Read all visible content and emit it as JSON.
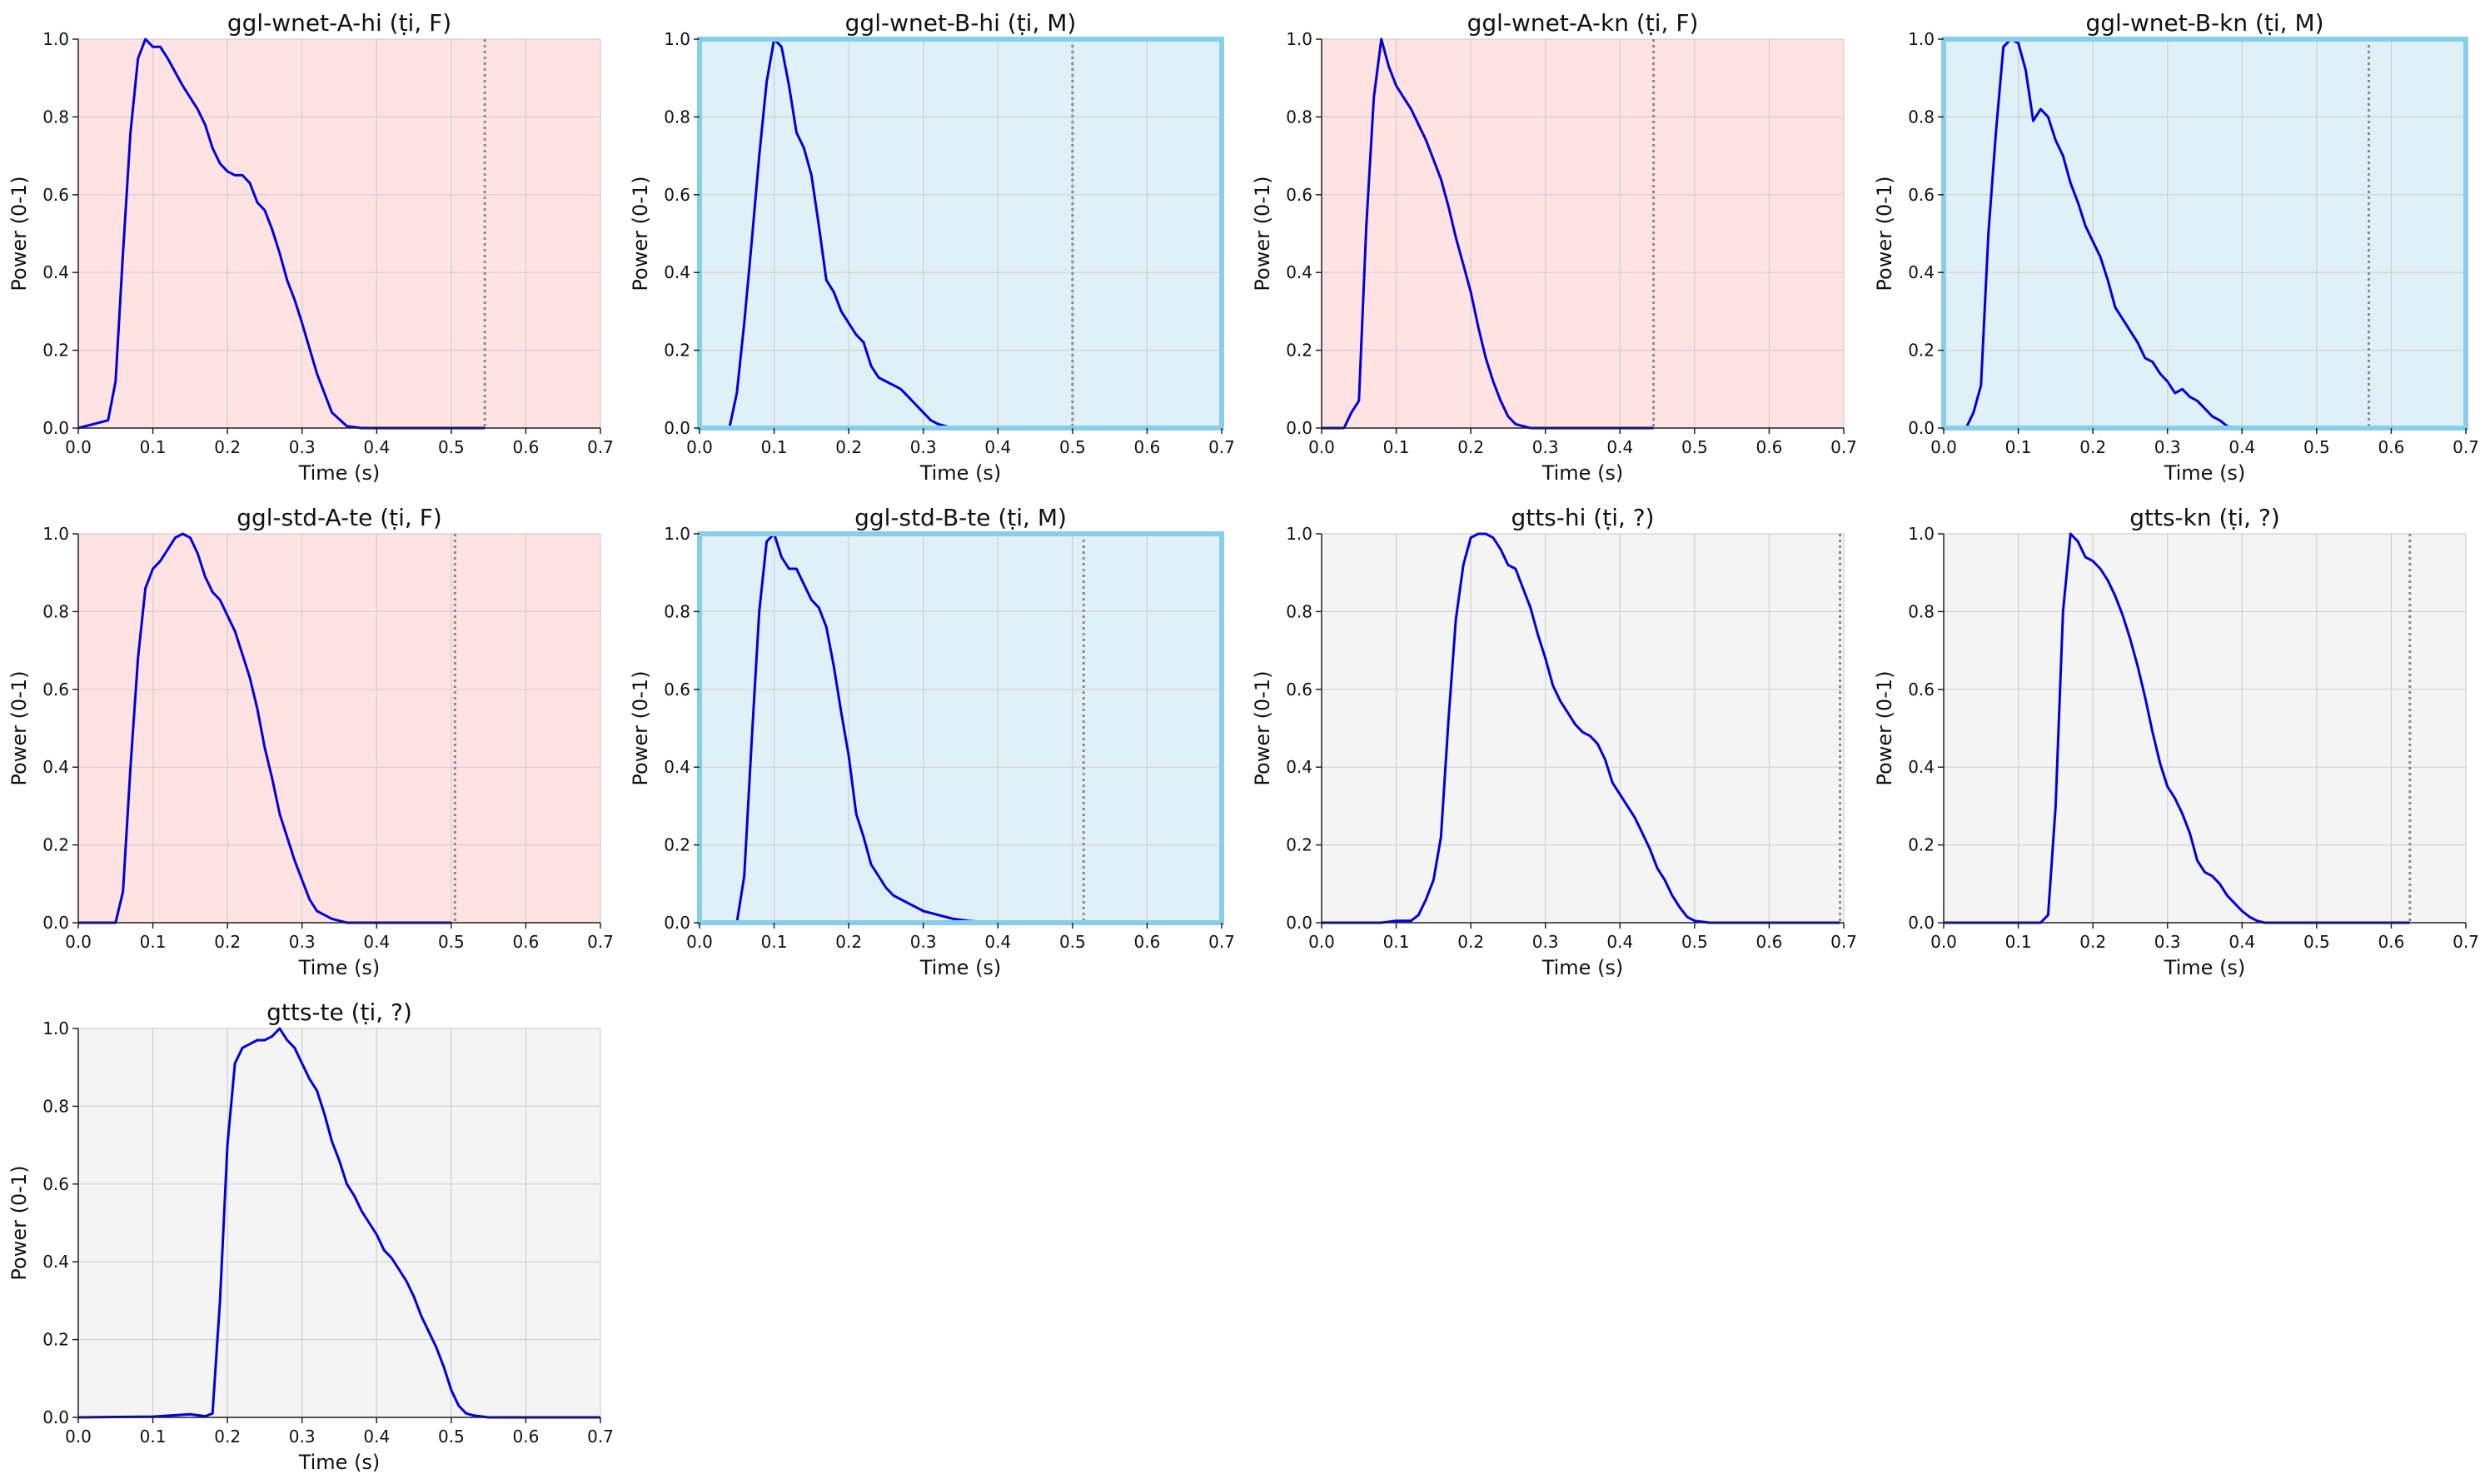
{
  "figure": {
    "background_colors": {
      "F": "#ffe2e2",
      "M": "#dff0f7",
      "?": "#f4f4f4"
    },
    "highlight_frame_color": "#87ceeb",
    "line_color": "#0000dd",
    "marker_color": "#888888"
  },
  "chart_data": [
    {
      "type": "line",
      "title": "ggl-wnet-A-hi (ṭi, F)",
      "gender": "F",
      "xlabel": "Time (s)",
      "ylabel": "Power (0-1)",
      "xlim": [
        0,
        0.7
      ],
      "ylim": [
        0,
        1
      ],
      "xticks": [
        "0.0",
        "0.1",
        "0.2",
        "0.3",
        "0.4",
        "0.5",
        "0.6",
        "0.7"
      ],
      "yticks": [
        "0.0",
        "0.2",
        "0.4",
        "0.6",
        "0.8",
        "1.0"
      ],
      "grid": true,
      "end_marker": 0.545,
      "x": [
        0,
        0.04,
        0.05,
        0.06,
        0.07,
        0.08,
        0.09,
        0.1,
        0.11,
        0.12,
        0.14,
        0.16,
        0.17,
        0.18,
        0.19,
        0.2,
        0.21,
        0.22,
        0.23,
        0.24,
        0.25,
        0.26,
        0.27,
        0.28,
        0.29,
        0.3,
        0.32,
        0.34,
        0.36,
        0.38,
        0.4,
        0.5,
        0.545
      ],
      "y": [
        0,
        0.02,
        0.12,
        0.45,
        0.76,
        0.95,
        1.0,
        0.98,
        0.98,
        0.95,
        0.88,
        0.82,
        0.78,
        0.72,
        0.68,
        0.66,
        0.65,
        0.65,
        0.63,
        0.58,
        0.56,
        0.51,
        0.45,
        0.38,
        0.33,
        0.27,
        0.14,
        0.04,
        0.005,
        0,
        0,
        0,
        0
      ]
    },
    {
      "type": "line",
      "title": "ggl-wnet-B-hi (ṭi, M)",
      "gender": "M",
      "highlight": true,
      "xlabel": "Time (s)",
      "ylabel": "Power (0-1)",
      "xlim": [
        0,
        0.7
      ],
      "ylim": [
        0,
        1
      ],
      "xticks": [
        "0.0",
        "0.1",
        "0.2",
        "0.3",
        "0.4",
        "0.5",
        "0.6",
        "0.7"
      ],
      "yticks": [
        "0.0",
        "0.2",
        "0.4",
        "0.6",
        "0.8",
        "1.0"
      ],
      "grid": true,
      "end_marker": 0.5,
      "x": [
        0.04,
        0.05,
        0.06,
        0.07,
        0.08,
        0.09,
        0.1,
        0.11,
        0.12,
        0.13,
        0.14,
        0.15,
        0.16,
        0.17,
        0.18,
        0.19,
        0.2,
        0.21,
        0.22,
        0.23,
        0.24,
        0.25,
        0.26,
        0.27,
        0.28,
        0.29,
        0.3,
        0.31,
        0.32,
        0.33,
        0.34
      ],
      "y": [
        0,
        0.09,
        0.27,
        0.48,
        0.7,
        0.89,
        1.0,
        0.98,
        0.88,
        0.76,
        0.72,
        0.65,
        0.52,
        0.38,
        0.35,
        0.3,
        0.27,
        0.24,
        0.22,
        0.16,
        0.13,
        0.12,
        0.11,
        0.1,
        0.08,
        0.06,
        0.04,
        0.02,
        0.01,
        0.005,
        0
      ]
    },
    {
      "type": "line",
      "title": "ggl-wnet-A-kn (ṭi, F)",
      "gender": "F",
      "xlabel": "Time (s)",
      "ylabel": "Power (0-1)",
      "xlim": [
        0,
        0.7
      ],
      "ylim": [
        0,
        1
      ],
      "xticks": [
        "0.0",
        "0.1",
        "0.2",
        "0.3",
        "0.4",
        "0.5",
        "0.6",
        "0.7"
      ],
      "yticks": [
        "0.0",
        "0.2",
        "0.4",
        "0.6",
        "0.8",
        "1.0"
      ],
      "grid": true,
      "end_marker": 0.445,
      "x": [
        0,
        0.03,
        0.04,
        0.05,
        0.06,
        0.07,
        0.08,
        0.09,
        0.1,
        0.11,
        0.12,
        0.13,
        0.14,
        0.15,
        0.16,
        0.17,
        0.18,
        0.19,
        0.2,
        0.21,
        0.22,
        0.23,
        0.24,
        0.25,
        0.26,
        0.27,
        0.28,
        0.3,
        0.35,
        0.445
      ],
      "y": [
        0,
        0,
        0.04,
        0.07,
        0.52,
        0.85,
        1.0,
        0.93,
        0.88,
        0.85,
        0.82,
        0.78,
        0.74,
        0.69,
        0.64,
        0.57,
        0.49,
        0.42,
        0.35,
        0.26,
        0.18,
        0.12,
        0.07,
        0.03,
        0.01,
        0.005,
        0,
        0,
        0,
        0
      ]
    },
    {
      "type": "line",
      "title": "ggl-wnet-B-kn (ṭi, M)",
      "gender": "M",
      "highlight": true,
      "xlabel": "Time (s)",
      "ylabel": "Power (0-1)",
      "xlim": [
        0,
        0.7
      ],
      "ylim": [
        0,
        1
      ],
      "xticks": [
        "0.0",
        "0.1",
        "0.2",
        "0.3",
        "0.4",
        "0.5",
        "0.6",
        "0.7"
      ],
      "yticks": [
        "0.0",
        "0.2",
        "0.4",
        "0.6",
        "0.8",
        "1.0"
      ],
      "grid": true,
      "end_marker": 0.57,
      "x": [
        0.03,
        0.04,
        0.05,
        0.06,
        0.07,
        0.08,
        0.09,
        0.1,
        0.11,
        0.12,
        0.13,
        0.14,
        0.15,
        0.16,
        0.17,
        0.18,
        0.19,
        0.2,
        0.21,
        0.22,
        0.23,
        0.24,
        0.25,
        0.26,
        0.27,
        0.28,
        0.29,
        0.3,
        0.31,
        0.32,
        0.33,
        0.34,
        0.35,
        0.36,
        0.37,
        0.38,
        0.39
      ],
      "y": [
        0,
        0.04,
        0.11,
        0.5,
        0.76,
        0.98,
        1.0,
        0.99,
        0.92,
        0.79,
        0.82,
        0.8,
        0.74,
        0.7,
        0.63,
        0.58,
        0.52,
        0.48,
        0.44,
        0.38,
        0.31,
        0.28,
        0.25,
        0.22,
        0.18,
        0.17,
        0.14,
        0.12,
        0.09,
        0.1,
        0.08,
        0.07,
        0.05,
        0.03,
        0.02,
        0.005,
        0
      ]
    },
    {
      "type": "line",
      "title": "ggl-std-A-te (ṭi, F)",
      "gender": "F",
      "xlabel": "Time (s)",
      "ylabel": "Power (0-1)",
      "xlim": [
        0,
        0.7
      ],
      "ylim": [
        0,
        1
      ],
      "xticks": [
        "0.0",
        "0.1",
        "0.2",
        "0.3",
        "0.4",
        "0.5",
        "0.6",
        "0.7"
      ],
      "yticks": [
        "0.0",
        "0.2",
        "0.4",
        "0.6",
        "0.8",
        "1.0"
      ],
      "grid": true,
      "end_marker": 0.505,
      "x": [
        0,
        0.05,
        0.06,
        0.07,
        0.08,
        0.09,
        0.1,
        0.11,
        0.12,
        0.13,
        0.14,
        0.15,
        0.16,
        0.17,
        0.18,
        0.19,
        0.2,
        0.21,
        0.22,
        0.23,
        0.24,
        0.25,
        0.26,
        0.27,
        0.28,
        0.29,
        0.3,
        0.31,
        0.32,
        0.33,
        0.34,
        0.35,
        0.36,
        0.4,
        0.5
      ],
      "y": [
        0,
        0,
        0.08,
        0.4,
        0.68,
        0.86,
        0.91,
        0.93,
        0.96,
        0.99,
        1.0,
        0.99,
        0.95,
        0.89,
        0.85,
        0.83,
        0.79,
        0.75,
        0.69,
        0.63,
        0.55,
        0.45,
        0.37,
        0.28,
        0.22,
        0.16,
        0.11,
        0.06,
        0.03,
        0.02,
        0.01,
        0.005,
        0,
        0,
        0
      ]
    },
    {
      "type": "line",
      "title": "ggl-std-B-te (ṭi, M)",
      "gender": "M",
      "highlight": true,
      "xlabel": "Time (s)",
      "ylabel": "Power (0-1)",
      "xlim": [
        0,
        0.7
      ],
      "ylim": [
        0,
        1
      ],
      "xticks": [
        "0.0",
        "0.1",
        "0.2",
        "0.3",
        "0.4",
        "0.5",
        "0.6",
        "0.7"
      ],
      "yticks": [
        "0.0",
        "0.2",
        "0.4",
        "0.6",
        "0.8",
        "1.0"
      ],
      "grid": true,
      "end_marker": 0.515,
      "x": [
        0.05,
        0.06,
        0.07,
        0.08,
        0.09,
        0.1,
        0.11,
        0.12,
        0.13,
        0.14,
        0.15,
        0.16,
        0.17,
        0.18,
        0.19,
        0.2,
        0.21,
        0.22,
        0.23,
        0.24,
        0.25,
        0.26,
        0.27,
        0.28,
        0.29,
        0.3,
        0.32,
        0.34,
        0.36,
        0.38,
        0.4
      ],
      "y": [
        0,
        0.12,
        0.47,
        0.8,
        0.98,
        1.0,
        0.94,
        0.91,
        0.91,
        0.87,
        0.83,
        0.81,
        0.76,
        0.66,
        0.54,
        0.43,
        0.28,
        0.22,
        0.15,
        0.12,
        0.09,
        0.07,
        0.06,
        0.05,
        0.04,
        0.03,
        0.02,
        0.01,
        0.005,
        0.002,
        0
      ]
    },
    {
      "type": "line",
      "title": "gtts-hi (ṭi, ?)",
      "gender": "?",
      "xlabel": "Time (s)",
      "ylabel": "Power (0-1)",
      "xlim": [
        0,
        0.7
      ],
      "ylim": [
        0,
        1
      ],
      "xticks": [
        "0.0",
        "0.1",
        "0.2",
        "0.3",
        "0.4",
        "0.5",
        "0.6",
        "0.7"
      ],
      "yticks": [
        "0.0",
        "0.2",
        "0.4",
        "0.6",
        "0.8",
        "1.0"
      ],
      "grid": true,
      "end_marker": 0.695,
      "x": [
        0,
        0.08,
        0.1,
        0.12,
        0.13,
        0.14,
        0.15,
        0.16,
        0.17,
        0.18,
        0.19,
        0.2,
        0.21,
        0.22,
        0.23,
        0.24,
        0.25,
        0.26,
        0.27,
        0.28,
        0.29,
        0.3,
        0.31,
        0.32,
        0.33,
        0.34,
        0.35,
        0.36,
        0.37,
        0.38,
        0.39,
        0.4,
        0.41,
        0.42,
        0.43,
        0.44,
        0.45,
        0.46,
        0.47,
        0.48,
        0.49,
        0.5,
        0.52,
        0.55,
        0.6,
        0.695
      ],
      "y": [
        0,
        0,
        0.005,
        0.005,
        0.02,
        0.06,
        0.11,
        0.22,
        0.52,
        0.78,
        0.92,
        0.99,
        1.0,
        1.0,
        0.99,
        0.96,
        0.92,
        0.91,
        0.86,
        0.81,
        0.74,
        0.68,
        0.61,
        0.57,
        0.54,
        0.51,
        0.49,
        0.48,
        0.46,
        0.42,
        0.36,
        0.33,
        0.3,
        0.27,
        0.23,
        0.19,
        0.14,
        0.11,
        0.07,
        0.04,
        0.015,
        0.005,
        0,
        0,
        0,
        0
      ]
    },
    {
      "type": "line",
      "title": "gtts-kn (ṭi, ?)",
      "gender": "?",
      "xlabel": "Time (s)",
      "ylabel": "Power (0-1)",
      "xlim": [
        0,
        0.7
      ],
      "ylim": [
        0,
        1
      ],
      "xticks": [
        "0.0",
        "0.1",
        "0.2",
        "0.3",
        "0.4",
        "0.5",
        "0.6",
        "0.7"
      ],
      "yticks": [
        "0.0",
        "0.2",
        "0.4",
        "0.6",
        "0.8",
        "1.0"
      ],
      "grid": true,
      "end_marker": 0.625,
      "x": [
        0,
        0.13,
        0.14,
        0.15,
        0.16,
        0.17,
        0.18,
        0.19,
        0.2,
        0.21,
        0.22,
        0.23,
        0.24,
        0.25,
        0.26,
        0.27,
        0.28,
        0.29,
        0.3,
        0.31,
        0.32,
        0.33,
        0.34,
        0.35,
        0.36,
        0.37,
        0.38,
        0.39,
        0.4,
        0.41,
        0.42,
        0.43,
        0.45,
        0.5,
        0.6,
        0.625
      ],
      "y": [
        0,
        0,
        0.02,
        0.3,
        0.8,
        1.0,
        0.98,
        0.94,
        0.93,
        0.91,
        0.88,
        0.84,
        0.79,
        0.73,
        0.66,
        0.58,
        0.49,
        0.41,
        0.35,
        0.32,
        0.28,
        0.23,
        0.16,
        0.13,
        0.12,
        0.1,
        0.07,
        0.05,
        0.03,
        0.015,
        0.005,
        0,
        0,
        0,
        0,
        0
      ]
    },
    {
      "type": "line",
      "title": "gtts-te (ṭi, ?)",
      "gender": "?",
      "xlabel": "Time (s)",
      "ylabel": "Power (0-1)",
      "xlim": [
        0,
        0.7
      ],
      "ylim": [
        0,
        1
      ],
      "xticks": [
        "0.0",
        "0.1",
        "0.2",
        "0.3",
        "0.4",
        "0.5",
        "0.6",
        "0.7"
      ],
      "yticks": [
        "0.0",
        "0.2",
        "0.4",
        "0.6",
        "0.8",
        "1.0"
      ],
      "grid": true,
      "end_marker": null,
      "x": [
        0,
        0.1,
        0.15,
        0.17,
        0.18,
        0.19,
        0.2,
        0.21,
        0.22,
        0.23,
        0.24,
        0.25,
        0.26,
        0.27,
        0.28,
        0.29,
        0.3,
        0.31,
        0.32,
        0.33,
        0.34,
        0.35,
        0.36,
        0.37,
        0.38,
        0.39,
        0.4,
        0.41,
        0.42,
        0.43,
        0.44,
        0.45,
        0.46,
        0.47,
        0.48,
        0.49,
        0.5,
        0.51,
        0.52,
        0.53,
        0.55,
        0.6,
        0.7
      ],
      "y": [
        0,
        0.002,
        0.008,
        0.003,
        0.01,
        0.3,
        0.7,
        0.91,
        0.95,
        0.96,
        0.97,
        0.97,
        0.98,
        1.0,
        0.97,
        0.95,
        0.91,
        0.87,
        0.84,
        0.78,
        0.71,
        0.66,
        0.6,
        0.57,
        0.53,
        0.5,
        0.47,
        0.43,
        0.41,
        0.38,
        0.35,
        0.31,
        0.26,
        0.22,
        0.18,
        0.13,
        0.07,
        0.03,
        0.01,
        0.005,
        0,
        0,
        0
      ]
    }
  ]
}
